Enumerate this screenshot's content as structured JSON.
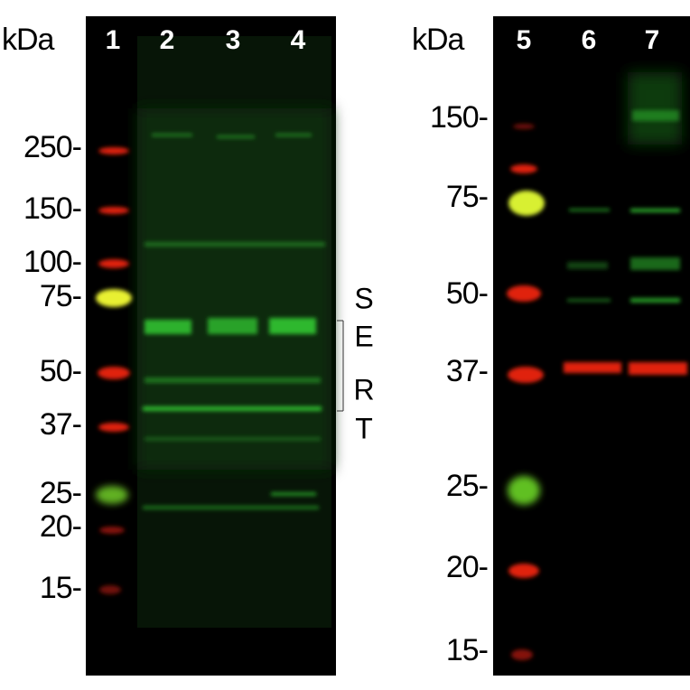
{
  "left_panel": {
    "unit": "kDa",
    "lanes": [
      "1",
      "2",
      "3",
      "4"
    ],
    "markers": [
      "250-",
      "150-",
      "100-",
      "75-",
      "50-",
      "37-",
      "25-",
      "20-",
      "15-"
    ],
    "band_label": [
      "S",
      "E",
      "R",
      "T"
    ]
  },
  "right_panel": {
    "unit": "kDa",
    "lanes": [
      "5",
      "6",
      "7"
    ],
    "markers": [
      "150-",
      "75-",
      "50-",
      "37-",
      "25-",
      "20-",
      "15-"
    ]
  }
}
